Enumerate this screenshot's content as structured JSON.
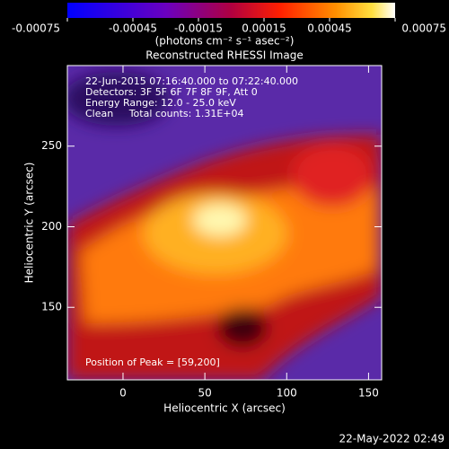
{
  "chart_data": {
    "type": "image",
    "title": "Reconstructed RHESSI Image",
    "colorbar": {
      "label": "(photons cm⁻² s⁻¹ asec⁻²)",
      "lim": [
        -0.00075,
        0.00075
      ],
      "ticks": [
        -0.00075,
        -0.00045,
        -0.00015,
        0.00015,
        0.00045,
        0.00075
      ]
    },
    "x_label": "Heliocentric X (arcsec)",
    "y_label": "Heliocentric Y (arcsec)",
    "xlim": [
      -34,
      158
    ],
    "xticks": [
      0,
      50,
      100,
      150
    ],
    "ylim": [
      105,
      300
    ],
    "yticks": [
      150,
      200,
      250
    ],
    "annotations": [
      "22-Jun-2015 07:16:40.000 to 07:22:40.000",
      "Detectors: 3F 5F 6F 7F 8F 9F, Att 0",
      "Energy Range: 12.0 - 25.0 keV",
      "Clean     Total counts: 1.31E+04"
    ],
    "peak_label": "Position of Peak = [59,200]",
    "timestamp": "22-May-2022 02:49"
  }
}
